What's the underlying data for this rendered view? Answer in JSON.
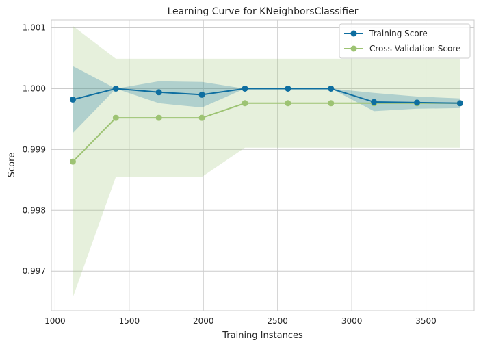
{
  "chart_data": {
    "type": "line",
    "title": "Learning Curve for KNeighborsClassifier",
    "xlabel": "Training Instances",
    "ylabel": "Score",
    "xlim": [
      975,
      3825
    ],
    "ylim": [
      0.99635,
      1.00113
    ],
    "xticks": [
      1000,
      1500,
      2000,
      2500,
      3000,
      3500
    ],
    "yticks": [
      0.997,
      0.998,
      0.999,
      1.0,
      1.001
    ],
    "ytick_labels": [
      "0.997",
      "0.998",
      "0.999",
      "1.000",
      "1.001"
    ],
    "grid": true,
    "legend_position": "top-right",
    "x": [
      1120,
      1410,
      1700,
      1990,
      2280,
      2570,
      2860,
      3150,
      3440,
      3730
    ],
    "series": [
      {
        "name": "Training Score",
        "color": "#0e6ea0",
        "values": [
          0.99982,
          1.0,
          0.99994,
          0.9999,
          1.0,
          1.0,
          1.0,
          0.99978,
          0.99977,
          0.99976
        ],
        "band_lower": [
          0.99927,
          1.0,
          0.99976,
          0.99969,
          1.0,
          1.0,
          1.0,
          0.99963,
          0.99967,
          0.99968
        ],
        "band_upper": [
          1.00037,
          1.0,
          1.00012,
          1.00011,
          1.0,
          1.0,
          1.0,
          0.99993,
          0.99987,
          0.99984
        ]
      },
      {
        "name": "Cross Validation Score",
        "color": "#9dc373",
        "values": [
          0.9988,
          0.99952,
          0.99952,
          0.99952,
          0.99976,
          0.99976,
          0.99976,
          0.99976,
          0.99976,
          0.99976
        ],
        "band_lower": [
          0.99657,
          0.99855,
          0.99855,
          0.99855,
          0.99903,
          0.99903,
          0.99903,
          0.99903,
          0.99903,
          0.99903
        ],
        "band_upper": [
          1.00103,
          1.00049,
          1.00049,
          1.00049,
          1.00049,
          1.00049,
          1.00049,
          1.00049,
          1.00049,
          1.00049
        ]
      }
    ]
  }
}
